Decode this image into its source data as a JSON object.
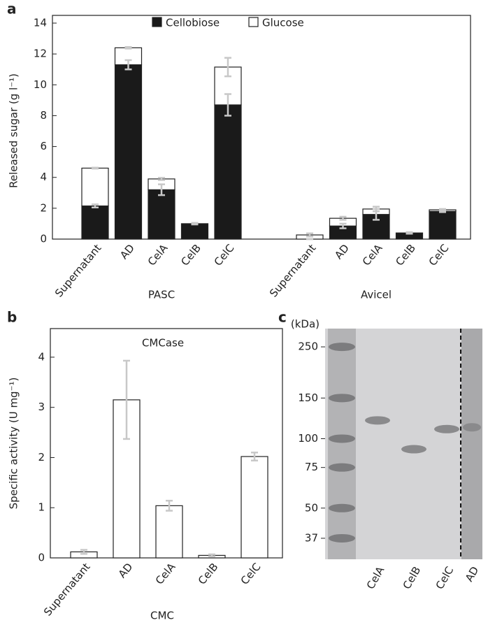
{
  "chart_data": [
    {
      "type": "stacked_bar",
      "panel": "a",
      "ylabel": "Released sugar (g l⁻¹)",
      "groups": [
        "PASC",
        "Avicel"
      ],
      "categories": [
        "Supernatant",
        "AD",
        "CelA",
        "CelB",
        "CelC",
        "Supernatant",
        "AD",
        "CelA",
        "CelB",
        "CelC"
      ],
      "series": [
        {
          "name": "Cellobiose",
          "color": "#1a1a1a",
          "values": [
            2.15,
            11.3,
            3.2,
            1.0,
            8.7,
            0,
            0.85,
            1.6,
            0.4,
            1.8
          ],
          "errors": [
            0.1,
            0.3,
            0.35,
            0.05,
            0.7,
            0,
            0.15,
            0.35,
            0.05,
            0.05
          ]
        },
        {
          "name": "Glucose",
          "color": "#ffffff",
          "values": [
            2.45,
            1.1,
            0.7,
            0,
            2.45,
            0.27,
            0.5,
            0.35,
            0,
            0.1
          ],
          "errors": [
            0.03,
            0.05,
            0.07,
            0,
            0.6,
            0.1,
            0.1,
            0.15,
            0,
            0.05
          ]
        }
      ],
      "ylim": [
        0,
        14.5
      ],
      "yticks": [
        0,
        2,
        4,
        6,
        8,
        10,
        12,
        14
      ],
      "legend": "top"
    },
    {
      "type": "bar",
      "panel": "b",
      "ylabel": "Specific activity (U mg⁻¹)",
      "annotation": "CMCase",
      "xlabel": "CMC",
      "categories": [
        "Supernatant",
        "AD",
        "CelA",
        "CelB",
        "CelC"
      ],
      "values": [
        0.12,
        3.15,
        1.04,
        0.05,
        2.02
      ],
      "errors": [
        0.04,
        0.78,
        0.1,
        0.02,
        0.08
      ],
      "color": "#ffffff",
      "ylim": [
        0,
        4.57
      ],
      "yticks": [
        0,
        1,
        2,
        3,
        4
      ]
    },
    {
      "type": "gel",
      "panel": "c",
      "ylabel": "(kDa)",
      "categories": [
        "CelA",
        "CelB",
        "CelC",
        "AD"
      ],
      "values": [
        120,
        90,
        110,
        112
      ],
      "ylim": [
        30,
        300
      ],
      "yticks": [
        250,
        150,
        100,
        75,
        50,
        37
      ],
      "log": true
    }
  ]
}
